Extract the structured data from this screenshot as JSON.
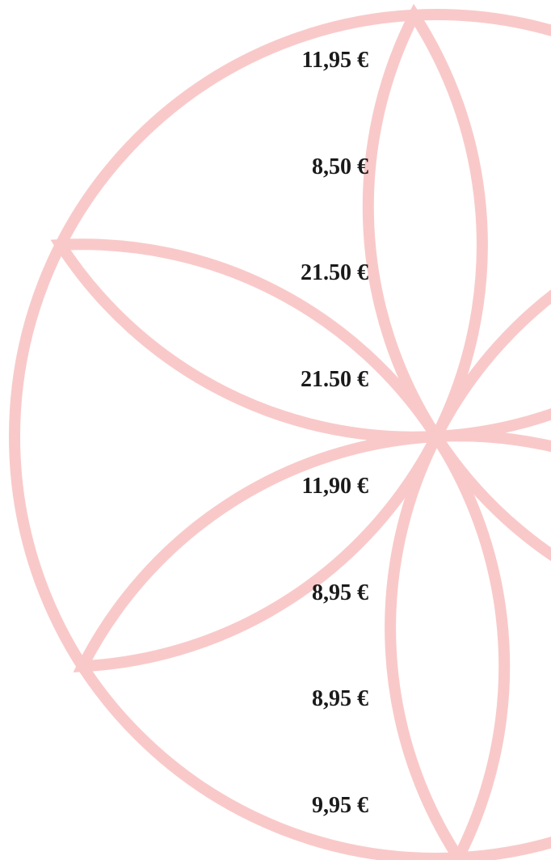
{
  "prices": [
    "11,95 €",
    "8,50 €",
    "21.50 €",
    "21.50 €",
    "11,90 €",
    "8,95 €",
    "8,95 €",
    "9,95 €"
  ]
}
